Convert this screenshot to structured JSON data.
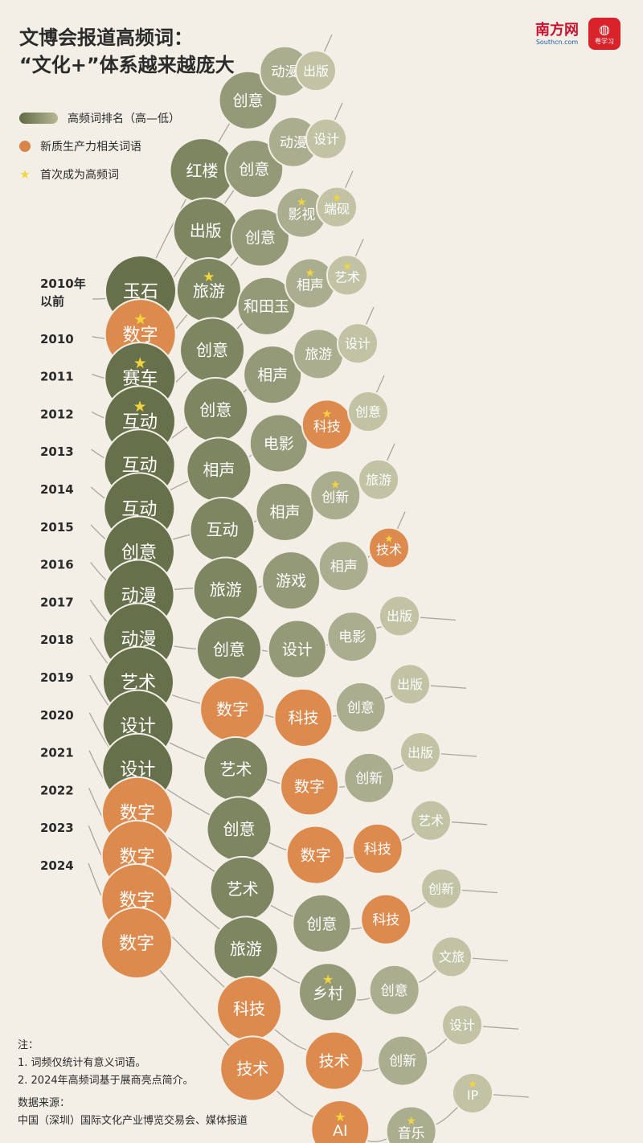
{
  "header": {
    "title_line1": "文博会报道高频词：",
    "title_line2": "“文化+”体系越来越庞大"
  },
  "logos": {
    "southcn_main": "南方网",
    "southcn_sub": "Southcn.com",
    "yuexuexi": "粤学习"
  },
  "legend": {
    "rank": "高频词排名（高—低）",
    "productivity": "新质生产力相关词语",
    "first_time": "首次成为高频词"
  },
  "notes": {
    "heading": "注：",
    "note1": "1. 词频仅统计有意义词语。",
    "note2": "2. 2024年高频词基于展商亮点简介。",
    "source_heading": "数据来源：",
    "source": "中国（深圳）国际文化产业博览交易会、媒体报道"
  },
  "colors": {
    "productivity": "#dc8a4e",
    "rank_high": "#66704a",
    "rank_low": "#c2c3a4",
    "star": "#f2d53c"
  },
  "chart_data": {
    "type": "ranked-bubble",
    "rank_direction": "高—低",
    "years": [
      {
        "label": "2010年以前",
        "words": [
          {
            "w": "玉石"
          },
          {
            "w": "红楼"
          },
          {
            "w": "创意"
          },
          {
            "w": "动漫"
          },
          {
            "w": "出版"
          }
        ]
      },
      {
        "label": "2010",
        "words": [
          {
            "w": "数字",
            "p": true,
            "s": true
          },
          {
            "w": "出版"
          },
          {
            "w": "创意"
          },
          {
            "w": "动漫"
          },
          {
            "w": "设计"
          }
        ]
      },
      {
        "label": "2011",
        "words": [
          {
            "w": "赛车",
            "s": true
          },
          {
            "w": "旅游",
            "s": true
          },
          {
            "w": "创意"
          },
          {
            "w": "影视",
            "s": true
          },
          {
            "w": "端砚",
            "s": true
          }
        ]
      },
      {
        "label": "2012",
        "words": [
          {
            "w": "互动",
            "s": true
          },
          {
            "w": "创意"
          },
          {
            "w": "和田玉"
          },
          {
            "w": "相声",
            "s": true
          },
          {
            "w": "艺术",
            "s": true
          }
        ]
      },
      {
        "label": "2013",
        "words": [
          {
            "w": "互动"
          },
          {
            "w": "创意"
          },
          {
            "w": "相声"
          },
          {
            "w": "旅游"
          },
          {
            "w": "设计"
          }
        ]
      },
      {
        "label": "2014",
        "words": [
          {
            "w": "互动"
          },
          {
            "w": "相声"
          },
          {
            "w": "电影"
          },
          {
            "w": "科技",
            "p": true,
            "s": true
          },
          {
            "w": "创意"
          }
        ]
      },
      {
        "label": "2015",
        "words": [
          {
            "w": "创意"
          },
          {
            "w": "互动"
          },
          {
            "w": "相声"
          },
          {
            "w": "创新",
            "s": true
          },
          {
            "w": "旅游"
          }
        ]
      },
      {
        "label": "2016",
        "words": [
          {
            "w": "动漫"
          },
          {
            "w": "旅游"
          },
          {
            "w": "游戏"
          },
          {
            "w": "相声"
          },
          {
            "w": "技术",
            "p": true,
            "s": true
          }
        ]
      },
      {
        "label": "2017",
        "words": [
          {
            "w": "动漫"
          },
          {
            "w": "创意"
          },
          {
            "w": "设计"
          },
          {
            "w": "电影"
          },
          {
            "w": "出版"
          }
        ]
      },
      {
        "label": "2018",
        "words": [
          {
            "w": "艺术"
          },
          {
            "w": "数字",
            "p": true
          },
          {
            "w": "科技",
            "p": true
          },
          {
            "w": "创意"
          },
          {
            "w": "出版"
          }
        ]
      },
      {
        "label": "2019",
        "words": [
          {
            "w": "设计"
          },
          {
            "w": "艺术"
          },
          {
            "w": "数字",
            "p": true
          },
          {
            "w": "创新"
          },
          {
            "w": "出版"
          }
        ]
      },
      {
        "label": "2020",
        "words": [
          {
            "w": "设计"
          },
          {
            "w": "创意"
          },
          {
            "w": "数字",
            "p": true
          },
          {
            "w": "科技",
            "p": true
          },
          {
            "w": "艺术"
          }
        ]
      },
      {
        "label": "2021",
        "words": [
          {
            "w": "数字",
            "p": true
          },
          {
            "w": "艺术"
          },
          {
            "w": "创意"
          },
          {
            "w": "科技",
            "p": true
          },
          {
            "w": "创新"
          }
        ]
      },
      {
        "label": "2022",
        "words": [
          {
            "w": "数字",
            "p": true
          },
          {
            "w": "旅游"
          },
          {
            "w": "乡村",
            "s": true
          },
          {
            "w": "创意"
          },
          {
            "w": "文旅"
          }
        ]
      },
      {
        "label": "2023",
        "words": [
          {
            "w": "数字",
            "p": true
          },
          {
            "w": "科技",
            "p": true
          },
          {
            "w": "技术",
            "p": true
          },
          {
            "w": "创新"
          },
          {
            "w": "设计"
          }
        ]
      },
      {
        "label": "2024",
        "words": [
          {
            "w": "数字",
            "p": true
          },
          {
            "w": "技术",
            "p": true
          },
          {
            "w": "AI",
            "p": true,
            "s": true
          },
          {
            "w": "音乐",
            "s": true
          },
          {
            "w": "IP",
            "s": true
          }
        ]
      }
    ]
  }
}
